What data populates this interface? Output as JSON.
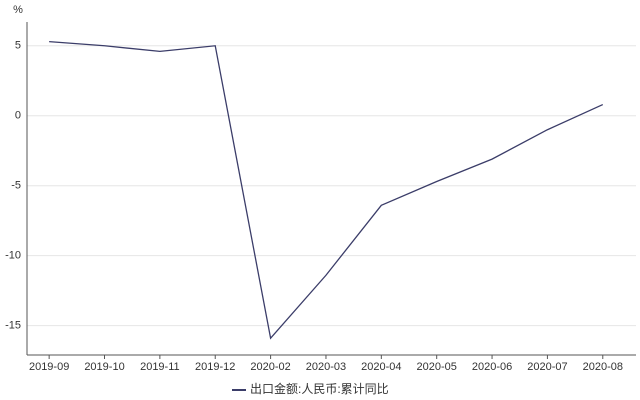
{
  "chart_data": {
    "type": "line",
    "y_unit": "%",
    "categories": [
      "2019-09",
      "2019-10",
      "2019-11",
      "2019-12",
      "2020-02",
      "2020-03",
      "2020-04",
      "2020-05",
      "2020-06",
      "2020-07",
      "2020-08"
    ],
    "series": [
      {
        "name": "出口金额:人民币:累计同比",
        "color": "#3b3d69",
        "values": [
          5.3,
          5.0,
          4.6,
          5.0,
          -15.9,
          -11.4,
          -6.4,
          -4.7,
          -3.1,
          -1.0,
          0.8
        ]
      }
    ],
    "ylim": [
      -17.1,
      6.7
    ],
    "yticks": [
      -15,
      -10,
      -5,
      0,
      5
    ],
    "grid": true,
    "legend": "bottom"
  }
}
